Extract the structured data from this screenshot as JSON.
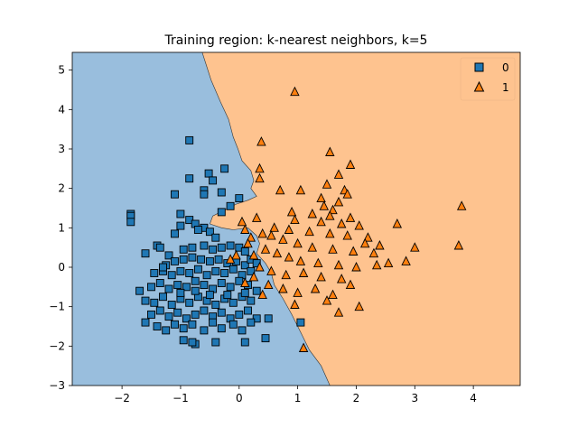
{
  "chart_data": {
    "type": "scatter",
    "title": "Training region: k-nearest neighbors, k=5",
    "xlabel": "",
    "ylabel": "",
    "xlim": [
      -2.85,
      4.8
    ],
    "ylim": [
      -3,
      5.45
    ],
    "xticks": [
      -2,
      -1,
      0,
      1,
      2,
      3,
      4
    ],
    "yticks": [
      -3,
      -2,
      -1,
      0,
      1,
      2,
      3,
      4,
      5
    ],
    "grid": false,
    "legend": "top-right",
    "decision_regions": [
      {
        "class": "0",
        "color": "#99bedd",
        "boundary_comment": "left region"
      },
      {
        "class": "1",
        "color": "#fec38f",
        "boundary_comment": "right region"
      }
    ],
    "boundary": [
      [
        -0.63,
        5.45
      ],
      [
        -0.48,
        4.75
      ],
      [
        -0.32,
        4.2
      ],
      [
        -0.18,
        3.75
      ],
      [
        -0.1,
        3.3
      ],
      [
        -0.02,
        3.0
      ],
      [
        0.05,
        2.7
      ],
      [
        0.2,
        2.45
      ],
      [
        0.25,
        2.2
      ],
      [
        0.2,
        2.0
      ],
      [
        0.3,
        1.8
      ],
      [
        0.15,
        1.7
      ],
      [
        -0.05,
        1.6
      ],
      [
        -0.25,
        1.45
      ],
      [
        -0.45,
        1.3
      ],
      [
        -0.5,
        1.1
      ],
      [
        -0.3,
        1.0
      ],
      [
        -0.1,
        0.95
      ],
      [
        0.15,
        1.0
      ],
      [
        0.3,
        0.8
      ],
      [
        0.35,
        0.6
      ],
      [
        0.3,
        0.35
      ],
      [
        0.45,
        0.1
      ],
      [
        0.55,
        -0.15
      ],
      [
        0.6,
        -0.45
      ],
      [
        0.75,
        -0.8
      ],
      [
        0.9,
        -1.2
      ],
      [
        1.05,
        -1.65
      ],
      [
        1.2,
        -2.1
      ],
      [
        1.4,
        -2.5
      ],
      [
        1.55,
        -3.0
      ]
    ],
    "series": [
      {
        "name": "0",
        "marker": "square",
        "color": "#1f77b4",
        "points": [
          [
            -1.85,
            1.35
          ],
          [
            -1.85,
            1.3
          ],
          [
            -1.85,
            1.15
          ],
          [
            -0.85,
            3.22
          ],
          [
            -0.85,
            2.25
          ],
          [
            -0.52,
            2.38
          ],
          [
            -0.45,
            2.2
          ],
          [
            -0.25,
            2.5
          ],
          [
            -0.6,
            1.95
          ],
          [
            -0.6,
            1.85
          ],
          [
            -1.1,
            1.85
          ],
          [
            -0.3,
            1.9
          ],
          [
            0.0,
            1.75
          ],
          [
            -0.15,
            1.55
          ],
          [
            -0.3,
            1.4
          ],
          [
            -1.0,
            1.35
          ],
          [
            -0.85,
            1.2
          ],
          [
            -1.0,
            1.05
          ],
          [
            -0.75,
            1.1
          ],
          [
            -0.6,
            1.0
          ],
          [
            -1.1,
            0.85
          ],
          [
            -0.7,
            0.95
          ],
          [
            -0.5,
            0.9
          ],
          [
            -0.4,
            0.75
          ],
          [
            -1.4,
            0.55
          ],
          [
            -1.35,
            0.5
          ],
          [
            -1.6,
            0.35
          ],
          [
            -1.2,
            0.3
          ],
          [
            -0.95,
            0.45
          ],
          [
            -0.8,
            0.5
          ],
          [
            -0.6,
            0.55
          ],
          [
            -0.45,
            0.45
          ],
          [
            -0.3,
            0.5
          ],
          [
            -0.15,
            0.55
          ],
          [
            0.0,
            0.5
          ],
          [
            0.1,
            0.4
          ],
          [
            -1.25,
            0.05
          ],
          [
            -1.1,
            0.15
          ],
          [
            -0.95,
            0.2
          ],
          [
            -0.8,
            0.25
          ],
          [
            -0.65,
            0.2
          ],
          [
            -0.5,
            0.15
          ],
          [
            -0.35,
            0.2
          ],
          [
            -0.2,
            0.1
          ],
          [
            -0.05,
            0.15
          ],
          [
            0.1,
            0.05
          ],
          [
            0.2,
            0.2
          ],
          [
            0.3,
            0.1
          ],
          [
            -1.45,
            -0.15
          ],
          [
            -1.3,
            -0.1
          ],
          [
            -1.15,
            -0.2
          ],
          [
            -1.0,
            -0.1
          ],
          [
            -0.85,
            -0.15
          ],
          [
            -0.7,
            -0.05
          ],
          [
            -0.55,
            -0.2
          ],
          [
            -0.4,
            -0.1
          ],
          [
            -0.25,
            -0.15
          ],
          [
            -0.1,
            -0.05
          ],
          [
            0.05,
            -0.2
          ],
          [
            0.2,
            -0.1
          ],
          [
            -1.7,
            -0.6
          ],
          [
            -1.5,
            -0.5
          ],
          [
            -1.35,
            -0.4
          ],
          [
            -1.2,
            -0.55
          ],
          [
            -1.05,
            -0.45
          ],
          [
            -0.9,
            -0.5
          ],
          [
            -0.75,
            -0.35
          ],
          [
            -0.6,
            -0.45
          ],
          [
            -0.45,
            -0.55
          ],
          [
            -0.3,
            -0.4
          ],
          [
            -0.15,
            -0.5
          ],
          [
            0.0,
            -0.35
          ],
          [
            0.15,
            -0.45
          ],
          [
            0.3,
            -0.6
          ],
          [
            -1.6,
            -0.85
          ],
          [
            -1.45,
            -0.9
          ],
          [
            -1.3,
            -0.75
          ],
          [
            -1.15,
            -0.95
          ],
          [
            -1.0,
            -0.8
          ],
          [
            -0.85,
            -0.9
          ],
          [
            -0.7,
            -0.75
          ],
          [
            -0.55,
            -0.85
          ],
          [
            -0.4,
            -0.95
          ],
          [
            -0.25,
            -0.8
          ],
          [
            -0.1,
            -0.9
          ],
          [
            0.05,
            -0.75
          ],
          [
            0.2,
            -0.85
          ],
          [
            -1.5,
            -1.2
          ],
          [
            -1.35,
            -1.1
          ],
          [
            -1.2,
            -1.25
          ],
          [
            -1.05,
            -1.15
          ],
          [
            -0.9,
            -1.3
          ],
          [
            -0.75,
            -1.2
          ],
          [
            -0.6,
            -1.1
          ],
          [
            -0.45,
            -1.25
          ],
          [
            -0.3,
            -1.15
          ],
          [
            -0.15,
            -1.3
          ],
          [
            0.0,
            -1.2
          ],
          [
            0.15,
            -1.1
          ],
          [
            0.3,
            -1.3
          ],
          [
            -1.6,
            -1.4
          ],
          [
            -1.4,
            -1.5
          ],
          [
            -1.25,
            -1.6
          ],
          [
            -1.1,
            -1.45
          ],
          [
            -0.95,
            -1.55
          ],
          [
            -0.8,
            -1.45
          ],
          [
            -0.6,
            -1.6
          ],
          [
            -0.45,
            -1.4
          ],
          [
            -0.3,
            -1.55
          ],
          [
            -0.1,
            -1.45
          ],
          [
            0.05,
            -1.6
          ],
          [
            0.2,
            -1.4
          ],
          [
            0.5,
            -1.3
          ],
          [
            1.05,
            -1.4
          ],
          [
            -0.75,
            -1.95
          ],
          [
            -0.8,
            -1.9
          ],
          [
            -0.4,
            -1.9
          ],
          [
            0.1,
            -1.9
          ],
          [
            -0.95,
            -1.85
          ],
          [
            0.45,
            -1.8
          ],
          [
            -1.3,
            0.0
          ],
          [
            -0.5,
            -0.7
          ],
          [
            -0.2,
            -0.7
          ],
          [
            0.1,
            -0.65
          ],
          [
            -0.75,
            -0.6
          ],
          [
            -1.0,
            -0.65
          ]
        ]
      },
      {
        "name": "1",
        "marker": "triangle",
        "color": "#ff7f0e",
        "points": [
          [
            0.95,
            4.45
          ],
          [
            0.38,
            3.18
          ],
          [
            1.55,
            2.92
          ],
          [
            1.9,
            2.6
          ],
          [
            1.7,
            2.35
          ],
          [
            0.35,
            2.5
          ],
          [
            0.35,
            2.25
          ],
          [
            1.5,
            2.1
          ],
          [
            0.7,
            1.95
          ],
          [
            1.05,
            1.95
          ],
          [
            1.8,
            1.95
          ],
          [
            1.4,
            1.75
          ],
          [
            1.7,
            1.65
          ],
          [
            1.85,
            1.85
          ],
          [
            1.45,
            1.55
          ],
          [
            1.6,
            1.45
          ],
          [
            0.9,
            1.4
          ],
          [
            1.25,
            1.35
          ],
          [
            1.55,
            1.3
          ],
          [
            1.9,
            1.25
          ],
          [
            0.95,
            1.2
          ],
          [
            1.4,
            1.15
          ],
          [
            1.75,
            1.1
          ],
          [
            2.05,
            1.05
          ],
          [
            0.6,
            1.0
          ],
          [
            0.85,
            0.95
          ],
          [
            1.2,
            0.9
          ],
          [
            1.55,
            0.85
          ],
          [
            1.85,
            0.8
          ],
          [
            2.2,
            0.75
          ],
          [
            2.4,
            0.55
          ],
          [
            2.15,
            0.6
          ],
          [
            0.4,
            0.85
          ],
          [
            0.55,
            0.8
          ],
          [
            0.75,
            0.7
          ],
          [
            1.0,
            0.6
          ],
          [
            1.25,
            0.5
          ],
          [
            1.6,
            0.45
          ],
          [
            1.95,
            0.4
          ],
          [
            2.3,
            0.35
          ],
          [
            0.45,
            0.45
          ],
          [
            0.65,
            0.35
          ],
          [
            0.85,
            0.25
          ],
          [
            1.05,
            0.15
          ],
          [
            1.35,
            0.1
          ],
          [
            1.7,
            0.05
          ],
          [
            2.0,
            0.0
          ],
          [
            0.35,
            0.0
          ],
          [
            0.55,
            -0.1
          ],
          [
            0.8,
            -0.2
          ],
          [
            1.1,
            -0.15
          ],
          [
            1.4,
            -0.25
          ],
          [
            1.75,
            -0.3
          ],
          [
            0.5,
            -0.45
          ],
          [
            0.75,
            -0.55
          ],
          [
            1.0,
            -0.65
          ],
          [
            1.3,
            -0.55
          ],
          [
            1.6,
            -0.7
          ],
          [
            1.9,
            -0.45
          ],
          [
            0.95,
            -0.95
          ],
          [
            1.5,
            -0.85
          ],
          [
            2.05,
            -1.0
          ],
          [
            1.7,
            -1.15
          ],
          [
            1.1,
            -2.05
          ],
          [
            2.7,
            1.1
          ],
          [
            3.8,
            1.55
          ],
          [
            3.0,
            0.5
          ],
          [
            3.75,
            0.55
          ],
          [
            2.85,
            0.15
          ],
          [
            2.55,
            0.1
          ],
          [
            2.35,
            0.05
          ],
          [
            0.25,
            0.3
          ],
          [
            0.2,
            0.75
          ],
          [
            0.1,
            0.95
          ],
          [
            0.3,
            1.25
          ],
          [
            0.05,
            1.15
          ],
          [
            0.15,
            0.6
          ],
          [
            -0.05,
            0.3
          ],
          [
            0.25,
            -0.25
          ],
          [
            0.4,
            -0.7
          ],
          [
            0.1,
            -0.4
          ],
          [
            -0.15,
            0.2
          ]
        ]
      }
    ]
  }
}
